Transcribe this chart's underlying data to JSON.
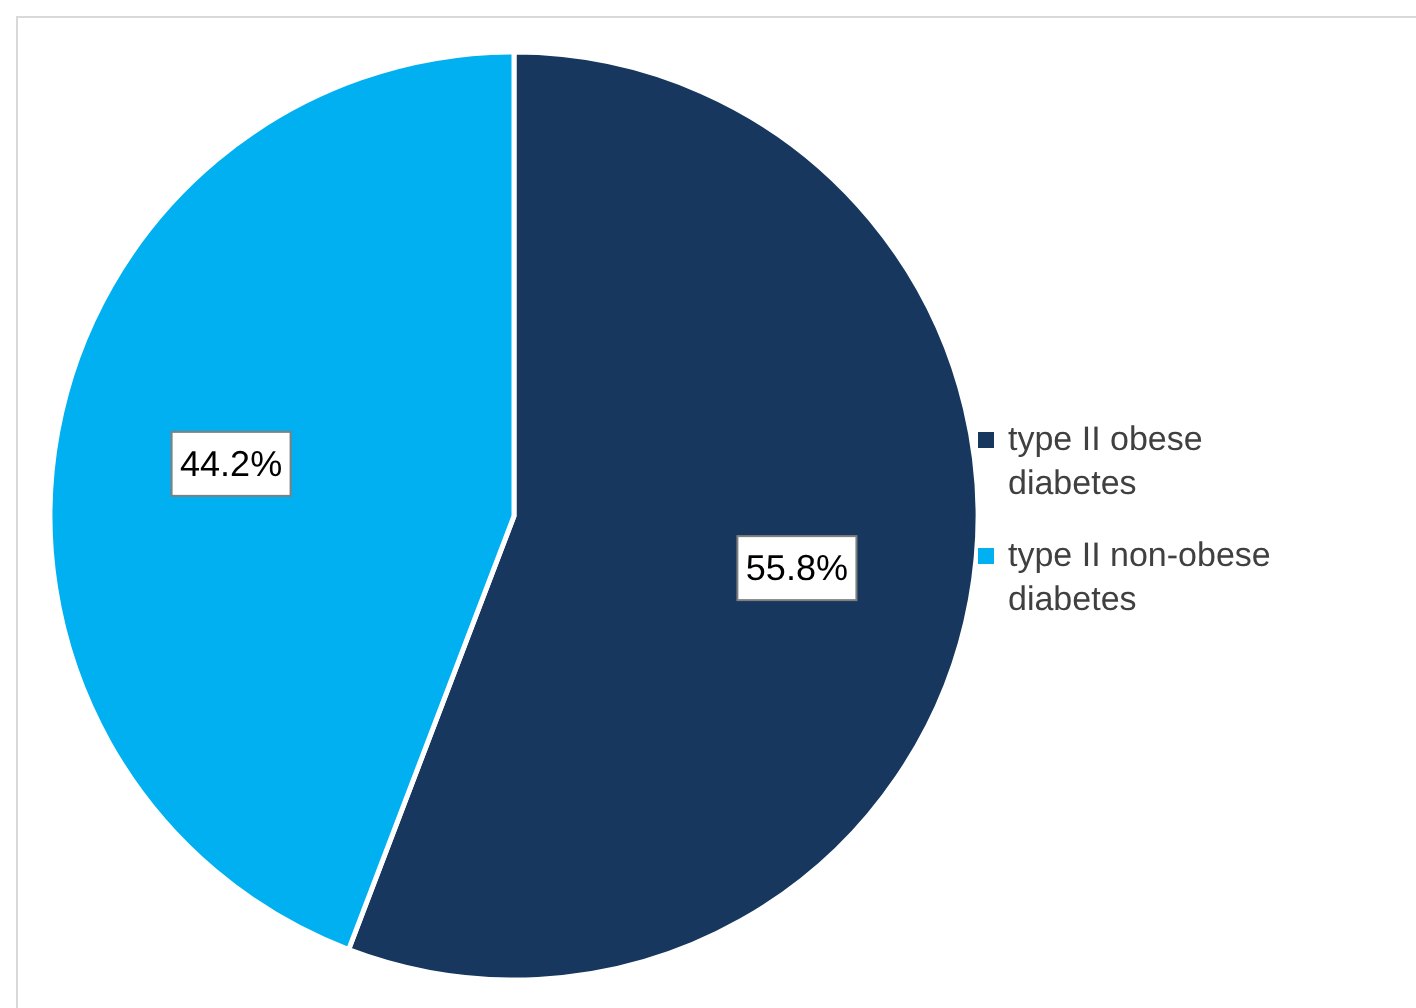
{
  "chart_data": {
    "type": "pie",
    "categories": [
      "type II obese diabetes",
      "type II non-obese diabetes"
    ],
    "values": [
      55.8,
      44.2
    ],
    "colors": [
      "#17375e",
      "#00b0f0"
    ],
    "value_labels": [
      "55.8%",
      "44.2%"
    ],
    "legend": "right"
  }
}
